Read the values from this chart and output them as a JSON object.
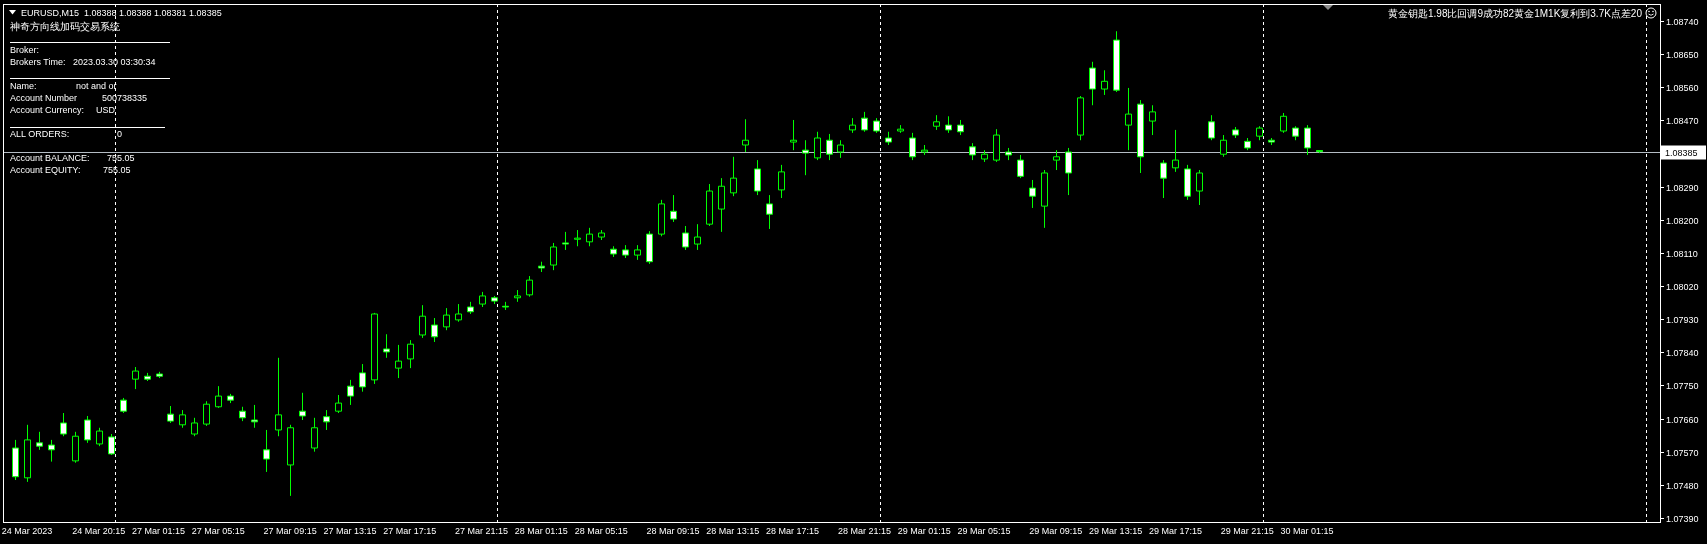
{
  "chart_data": {
    "type": "candlestick",
    "title": "EURUSD,M15  1.08388 1.08388 1.08381 1.08385",
    "subtitle": "神奇方向线加码交易系统",
    "annotations": [
      "Broker:",
      "Brokers Time:",
      "2023.03.30 03:30:34",
      "Name:",
      "not and or",
      "Account Number",
      "500738335",
      "Account Currency:",
      "USD",
      "ALL ORDERS:",
      "0",
      "Account BALANCE:",
      "755.05",
      "Account EQUITY:",
      "755.05",
      "黄金钥匙1.98比回调9成功82黄金1M1K复利到3.7K点差20"
    ],
    "color": "#00ff00",
    "categories": [
      null,
      "24 Mar 2023",
      null,
      null,
      null,
      null,
      null,
      "24 Mar 20:15",
      null,
      null,
      null,
      null,
      "27 Mar 01:15",
      null,
      null,
      null,
      null,
      "27 Mar 05:15",
      null,
      null,
      null,
      null,
      null,
      "27 Mar 09:15",
      null,
      null,
      null,
      null,
      "27 Mar 13:15",
      null,
      null,
      null,
      null,
      "27 Mar 17:15",
      null,
      null,
      null,
      null,
      null,
      "27 Mar 21:15",
      null,
      null,
      null,
      null,
      "28 Mar 01:15",
      null,
      null,
      null,
      null,
      "28 Mar 05:15",
      null,
      null,
      null,
      null,
      null,
      "28 Mar 09:15",
      null,
      null,
      null,
      null,
      "28 Mar 13:15",
      null,
      null,
      null,
      null,
      "28 Mar 17:15",
      null,
      null,
      null,
      null,
      null,
      "28 Mar 21:15",
      null,
      null,
      null,
      null,
      "29 Mar 01:15",
      null,
      null,
      null,
      null,
      "29 Mar 05:15",
      null,
      null,
      null,
      null,
      null,
      "29 Mar 09:15",
      null,
      null,
      null,
      null,
      "29 Mar 13:15",
      null,
      null,
      null,
      null,
      "29 Mar 17:15",
      null,
      null,
      null,
      null,
      null,
      "29 Mar 21:15",
      null,
      null,
      null,
      null,
      "30 Mar 01:15",
      null,
      null,
      null,
      null,
      null,
      null,
      null,
      null,
      null,
      null,
      null,
      null,
      null,
      null,
      null,
      null,
      null,
      null,
      null,
      null,
      null,
      null,
      null,
      null,
      null,
      null,
      null,
      null,
      null
    ],
    "ohlc": [
      [
        1.0758,
        1.07602,
        1.07493,
        1.07502
      ],
      [
        1.07499,
        1.07643,
        1.07488,
        1.07602
      ],
      [
        1.07594,
        1.07624,
        1.07575,
        1.07585
      ],
      [
        1.07588,
        1.07602,
        1.07543,
        1.07575
      ],
      [
        1.07648,
        1.07675,
        1.07612,
        1.07618
      ],
      [
        1.07545,
        1.07624,
        1.0754,
        1.07612
      ],
      [
        1.07656,
        1.07667,
        1.07594,
        1.07602
      ],
      [
        1.07591,
        1.07635,
        1.07585,
        1.07626
      ],
      [
        1.0761,
        1.07618,
        1.07561,
        1.07564
      ],
      [
        1.0771,
        1.07716,
        1.07675,
        1.0768
      ],
      [
        1.07767,
        1.078,
        1.0774,
        1.07789
      ],
      [
        1.07775,
        1.07784,
        1.07762,
        1.07767
      ],
      [
        1.07781,
        1.07787,
        1.0777,
        1.07775
      ],
      [
        1.07672,
        1.07694,
        1.07648,
        1.07653
      ],
      [
        1.07643,
        1.07683,
        1.07635,
        1.0767
      ],
      [
        1.07618,
        1.07662,
        1.07612,
        1.07648
      ],
      [
        1.07645,
        1.07707,
        1.0764,
        1.07699
      ],
      [
        1.07692,
        1.07748,
        1.07689,
        1.07721
      ],
      [
        1.07721,
        1.07727,
        1.07702,
        1.0771
      ],
      [
        1.0768,
        1.07692,
        1.07653,
        1.07662
      ],
      [
        1.07656,
        1.07697,
        1.07635,
        1.07651
      ],
      [
        1.07575,
        1.07629,
        1.07515,
        1.0755
      ],
      [
        1.07629,
        1.07825,
        1.07612,
        1.0767
      ],
      [
        1.07534,
        1.07643,
        1.0745,
        1.07635
      ],
      [
        1.0768,
        1.0773,
        1.07656,
        1.07667
      ],
      [
        1.0758,
        1.07662,
        1.0757,
        1.07635
      ],
      [
        1.07665,
        1.07683,
        1.07629,
        1.07651
      ],
      [
        1.0768,
        1.07724,
        1.07675,
        1.07702
      ],
      [
        1.07748,
        1.07765,
        1.07697,
        1.07721
      ],
      [
        1.07784,
        1.07808,
        1.07733,
        1.07746
      ],
      [
        1.07765,
        1.07947,
        1.07754,
        1.07944
      ],
      [
        1.07849,
        1.07889,
        1.07825,
        1.07841
      ],
      [
        1.07797,
        1.0786,
        1.0777,
        1.07816
      ],
      [
        1.07822,
        1.07873,
        1.07797,
        1.07862
      ],
      [
        1.07887,
        1.07968,
        1.07879,
        1.07938
      ],
      [
        1.07914,
        1.07933,
        1.07868,
        1.07882
      ],
      [
        1.07909,
        1.0796,
        1.079,
        1.07941
      ],
      [
        1.07928,
        1.07971,
        1.07923,
        1.07944
      ],
      [
        1.07963,
        1.07977,
        1.07944,
        1.0795
      ],
      [
        1.07971,
        1.08004,
        1.07963,
        1.07993
      ],
      [
        1.07988,
        1.07993,
        1.07971,
        1.07979
      ],
      [
        1.07965,
        1.07977,
        1.07955,
        1.07963
      ],
      [
        1.07988,
        1.08009,
        1.07977,
        1.07993
      ],
      [
        1.07996,
        1.08047,
        1.07991,
        1.08036
      ],
      [
        1.08074,
        1.08086,
        1.08058,
        1.08069
      ],
      [
        1.08077,
        1.08137,
        1.08063,
        1.08126
      ],
      [
        1.08137,
        1.08167,
        1.08118,
        1.08134
      ],
      [
        1.08147,
        1.08172,
        1.08128,
        1.0815
      ],
      [
        1.0814,
        1.08178,
        1.08128,
        1.08161
      ],
      [
        1.08153,
        1.08172,
        1.08145,
        1.08164
      ],
      [
        1.0812,
        1.08128,
        1.08099,
        1.08107
      ],
      [
        1.08118,
        1.08131,
        1.08096,
        1.08104
      ],
      [
        1.08104,
        1.08131,
        1.08091,
        1.08118
      ],
      [
        1.08161,
        1.08169,
        1.0808,
        1.08086
      ],
      [
        1.08161,
        1.08254,
        1.08155,
        1.08243
      ],
      [
        1.08223,
        1.08267,
        1.08194,
        1.08202
      ],
      [
        1.08164,
        1.08183,
        1.08118,
        1.08126
      ],
      [
        1.08134,
        1.08188,
        1.08118,
        1.08153
      ],
      [
        1.08188,
        1.08297,
        1.08183,
        1.08278
      ],
      [
        1.08229,
        1.08313,
        1.08167,
        1.08291
      ],
      [
        1.08273,
        1.08371,
        1.08264,
        1.08313
      ],
      [
        1.08403,
        1.08473,
        1.08384,
        1.08416
      ],
      [
        1.08338,
        1.08362,
        1.08267,
        1.08278
      ],
      [
        1.08243,
        1.08267,
        1.08175,
        1.08215
      ],
      [
        1.08281,
        1.08349,
        1.08259,
        1.0833
      ],
      [
        1.08411,
        1.08471,
        1.08389,
        1.08416
      ],
      [
        1.08389,
        1.08416,
        1.08321,
        1.08381
      ],
      [
        1.08368,
        1.08439,
        1.08362,
        1.08422
      ],
      [
        1.08416,
        1.08433,
        1.08362,
        1.08378
      ],
      [
        1.08384,
        1.08416,
        1.08368,
        1.08403
      ],
      [
        1.08444,
        1.08476,
        1.08436,
        1.08457
      ],
      [
        1.08476,
        1.08493,
        1.08439,
        1.08444
      ],
      [
        1.08468,
        1.08476,
        1.08436,
        1.08441
      ],
      [
        1.08422,
        1.08439,
        1.08403,
        1.08411
      ],
      [
        1.08441,
        1.08457,
        1.08436,
        1.08446
      ],
      [
        1.08422,
        1.08436,
        1.08362,
        1.08371
      ],
      [
        1.08384,
        1.08403,
        1.08376,
        1.08389
      ],
      [
        1.08454,
        1.08484,
        1.08444,
        1.08466
      ],
      [
        1.08457,
        1.08481,
        1.08436,
        1.08444
      ],
      [
        1.08457,
        1.08471,
        1.0843,
        1.08439
      ],
      [
        1.08398,
        1.08408,
        1.08362,
        1.08376
      ],
      [
        1.08365,
        1.08389,
        1.08357,
        1.08378
      ],
      [
        1.08362,
        1.08446,
        1.08357,
        1.0843
      ],
      [
        1.08384,
        1.08395,
        1.08362,
        1.08376
      ],
      [
        1.08362,
        1.08376,
        1.08313,
        1.08318
      ],
      [
        1.08286,
        1.08308,
        1.08232,
        1.08264
      ],
      [
        1.08237,
        1.08335,
        1.08178,
        1.08327
      ],
      [
        1.08362,
        1.08389,
        1.08335,
        1.08371
      ],
      [
        1.08384,
        1.08395,
        1.08267,
        1.08327
      ],
      [
        1.0843,
        1.08536,
        1.08416,
        1.08531
      ],
      [
        1.08612,
        1.08629,
        1.08511,
        1.08555
      ],
      [
        1.08555,
        1.08606,
        1.08539,
        1.08576
      ],
      [
        1.08688,
        1.08712,
        1.08547,
        1.08552
      ],
      [
        1.08457,
        1.08558,
        1.08389,
        1.08487
      ],
      [
        1.08514,
        1.08525,
        1.08327,
        1.08371
      ],
      [
        1.08468,
        1.08511,
        1.0843,
        1.08493
      ],
      [
        1.08354,
        1.08362,
        1.08259,
        1.08313
      ],
      [
        1.08341,
        1.08444,
        1.0833,
        1.08362
      ],
      [
        1.08338,
        1.08349,
        1.08254,
        1.08264
      ],
      [
        1.08278,
        1.08335,
        1.0824,
        1.08327
      ],
      [
        1.08466,
        1.08484,
        1.08416,
        1.08422
      ],
      [
        1.08378,
        1.0843,
        1.08371,
        1.08416
      ],
      [
        1.08444,
        1.08452,
        1.08422,
        1.0843
      ],
      [
        1.08413,
        1.08422,
        1.08389,
        1.08395
      ],
      [
        1.08427,
        1.08454,
        1.08416,
        1.08449
      ],
      [
        1.08416,
        1.08422,
        1.08403,
        1.08411
      ],
      [
        1.08441,
        1.0849,
        1.08436,
        1.08481
      ],
      [
        1.08449,
        1.08454,
        1.08416,
        1.08427
      ],
      [
        1.08449,
        1.08457,
        1.08376,
        1.08395
      ],
      [
        1.08388,
        1.08388,
        1.08381,
        1.08385
      ],
      null,
      null,
      null,
      null,
      null,
      null,
      null,
      null,
      null,
      null,
      null,
      null,
      null,
      null,
      null,
      null,
      null,
      null,
      null,
      null,
      null,
      null,
      null,
      null,
      null,
      null,
      null,
      null
    ],
    "ylim": [
      1.07379,
      1.08786
    ],
    "yticks": [
      {
        "value": 1.0874,
        "label": "1.08740"
      },
      {
        "value": 1.0865,
        "label": "1.08650"
      },
      {
        "value": 1.0856,
        "label": "1.08560"
      },
      {
        "value": 1.0847,
        "label": "1.08470"
      },
      {
        "value": 1.0829,
        "label": "1.08290"
      },
      {
        "value": 1.082,
        "label": "1.08200"
      },
      {
        "value": 1.0811,
        "label": "1.08110"
      },
      {
        "value": 1.0802,
        "label": "1.08020"
      },
      {
        "value": 1.0793,
        "label": "1.07930"
      },
      {
        "value": 1.0784,
        "label": "1.07840"
      },
      {
        "value": 1.0775,
        "label": "1.07750"
      },
      {
        "value": 1.0766,
        "label": "1.07660"
      },
      {
        "value": 1.0757,
        "label": "1.07570"
      },
      {
        "value": 1.0748,
        "label": "1.07480"
      },
      {
        "value": 1.0739,
        "label": "1.07390"
      }
    ],
    "ref_lines": [
      {
        "axis": "y",
        "value": 1.08385,
        "label": "1.08385",
        "color": "#b4bcc4",
        "line_style": "solid"
      }
    ]
  }
}
